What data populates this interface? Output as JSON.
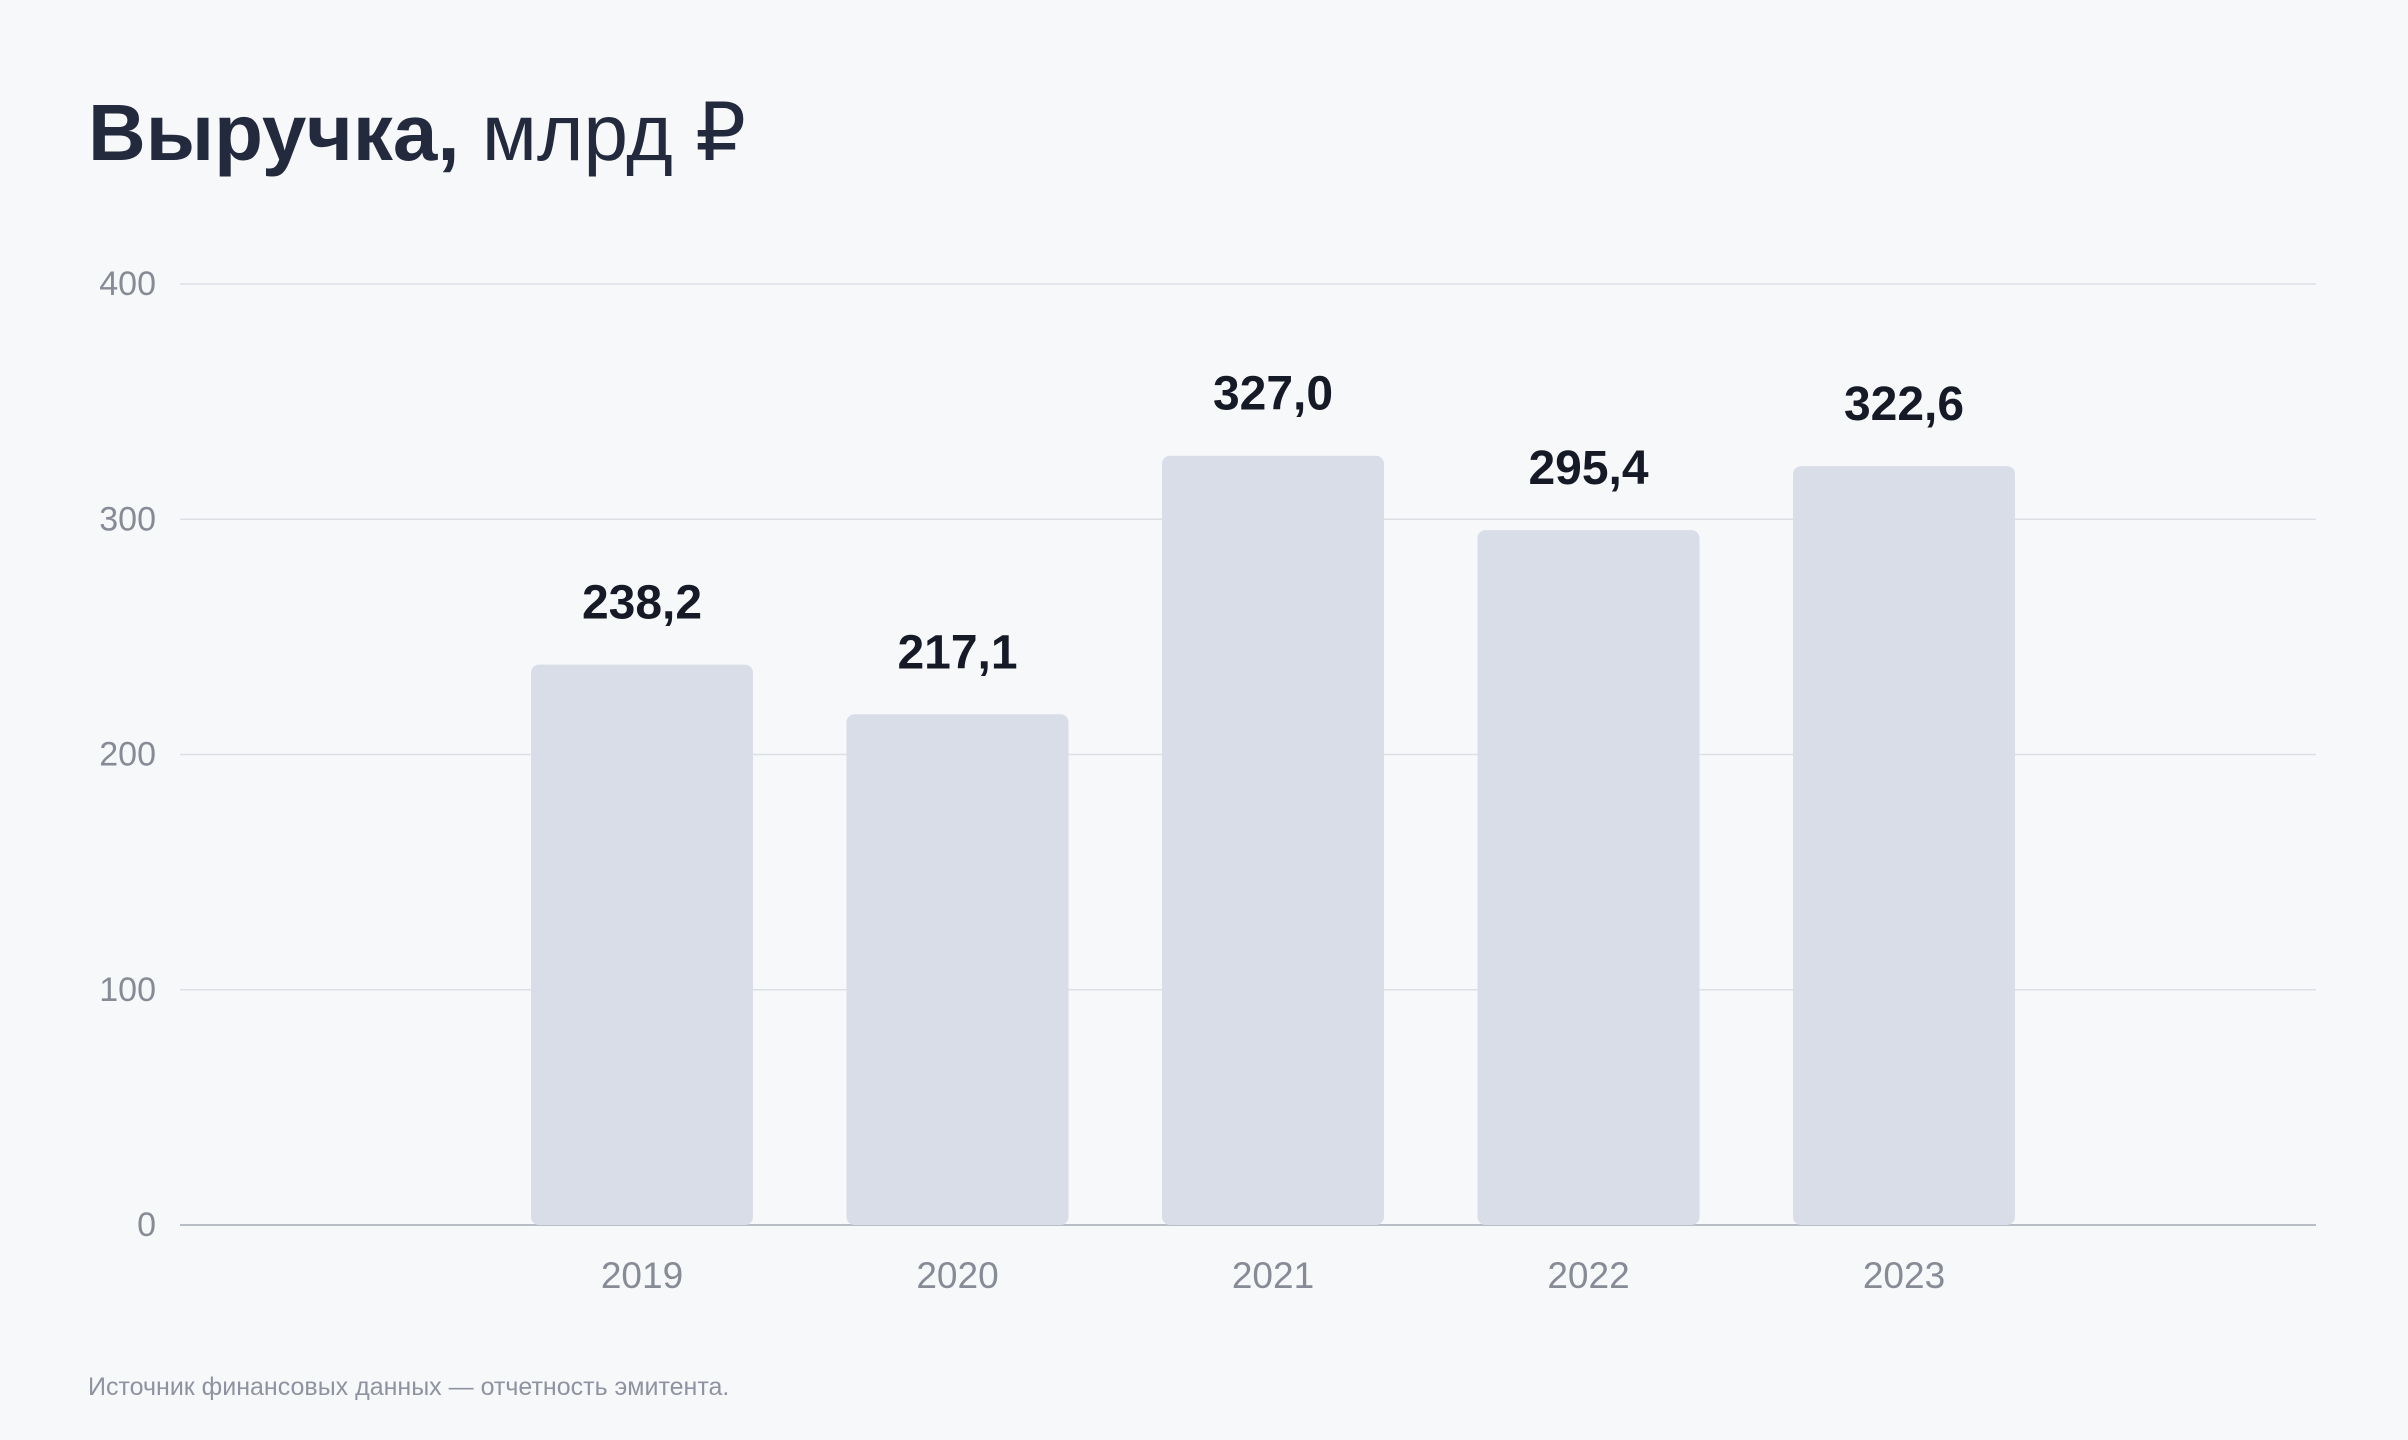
{
  "title": {
    "main": "Выручка,",
    "unit": "млрд ₽"
  },
  "footnote": "Источник финансовых данных — отчетность эмитента.",
  "colors": {
    "background": "#f7f8fa",
    "bar": "#d8dde8",
    "grid": "#dcdfe5",
    "axis": "#b9bdc6",
    "tick_label": "#868b96",
    "value_label": "#151a26",
    "title": "#232a3e"
  },
  "chart_data": {
    "type": "bar",
    "title": "Выручка, млрд ₽",
    "xlabel": "",
    "ylabel": "",
    "categories": [
      "2019",
      "2020",
      "2021",
      "2022",
      "2023"
    ],
    "values": [
      238.2,
      217.1,
      327.0,
      295.4,
      322.6
    ],
    "value_labels": [
      "238,2",
      "217,1",
      "327,0",
      "295,4",
      "322,6"
    ],
    "ylim": [
      0,
      400
    ],
    "y_ticks": [
      0,
      100,
      200,
      300,
      400
    ],
    "grid": true,
    "legend": "none"
  }
}
